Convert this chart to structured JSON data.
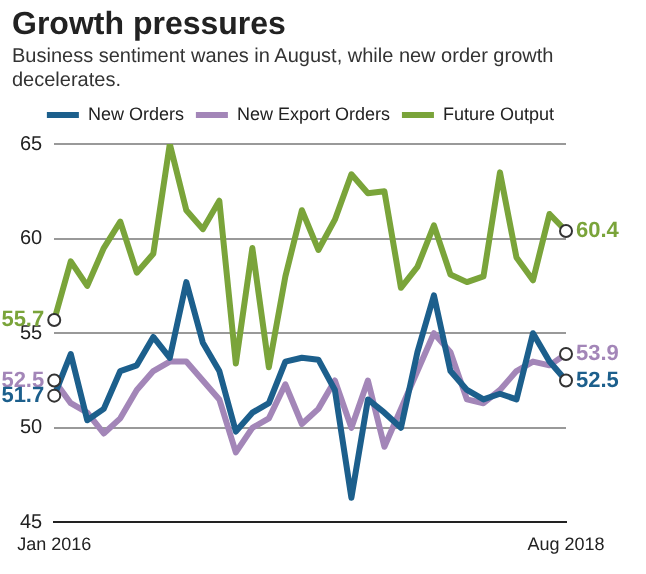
{
  "chart_data": {
    "type": "line",
    "title": "Growth pressures",
    "subtitle": "Business sentiment wanes in August, while new order growth decelerates.",
    "categories": [
      "Jan 2016",
      null,
      null,
      null,
      null,
      null,
      null,
      null,
      null,
      null,
      null,
      null,
      null,
      null,
      null,
      null,
      null,
      null,
      null,
      null,
      null,
      null,
      null,
      null,
      null,
      null,
      null,
      null,
      null,
      null,
      null,
      "Aug 2018"
    ],
    "series": [
      {
        "name": "New Orders",
        "color": "#1c5f8c",
        "values": [
          51.7,
          53.9,
          50.4,
          51,
          53,
          53.3,
          54.8,
          53.7,
          57.7,
          54.5,
          53,
          49.8,
          50.8,
          51.3,
          53.5,
          53.7,
          53.6,
          52,
          46.3,
          51.5,
          50.8,
          50,
          54,
          57,
          53,
          52,
          51.5,
          51.8,
          51.5,
          55,
          53.5,
          52.5
        ]
      },
      {
        "name": "New Export Orders",
        "color": "#a386b8",
        "values": [
          52.5,
          51.3,
          50.8,
          49.7,
          50.5,
          52,
          53,
          53.5,
          53.5,
          52.5,
          51.5,
          48.7,
          50,
          50.5,
          52.3,
          50.2,
          51,
          52.5,
          50,
          52.5,
          49,
          51,
          53,
          55,
          54,
          51.5,
          51.3,
          52,
          53,
          53.5,
          53.3,
          53.9
        ]
      },
      {
        "name": "Future Output",
        "color": "#7aa43a",
        "values": [
          55.7,
          58.8,
          57.5,
          59.5,
          60.9,
          58.2,
          59.2,
          65,
          61.5,
          60.5,
          62,
          53.4,
          59.5,
          53.2,
          58,
          61.5,
          59.4,
          61,
          63.4,
          62.4,
          62.5,
          57.4,
          58.5,
          60.7,
          58.1,
          57.7,
          58,
          63.5,
          59,
          57.8,
          61.3,
          60.4
        ]
      }
    ],
    "ylim": [
      45,
      65
    ],
    "yticks": [
      45,
      50,
      55,
      60,
      65
    ],
    "grid": "y",
    "legend": "top",
    "marker": "none",
    "line_style": "solid",
    "annotations": [
      {
        "text": "55.7",
        "x": "Jan 2016",
        "y": 55.7
      },
      {
        "text": "52.5",
        "x": "Jan 2016",
        "y": 52.5
      },
      {
        "text": "51.7",
        "x": "Jan 2016",
        "y": 51.7
      },
      {
        "text": "60.4",
        "x": "Aug 2018",
        "y": 60.4
      },
      {
        "text": "53.9",
        "x": "Aug 2018",
        "y": 53.9
      },
      {
        "text": "52.5",
        "x": "Aug 2018",
        "y": 52.5
      }
    ]
  }
}
